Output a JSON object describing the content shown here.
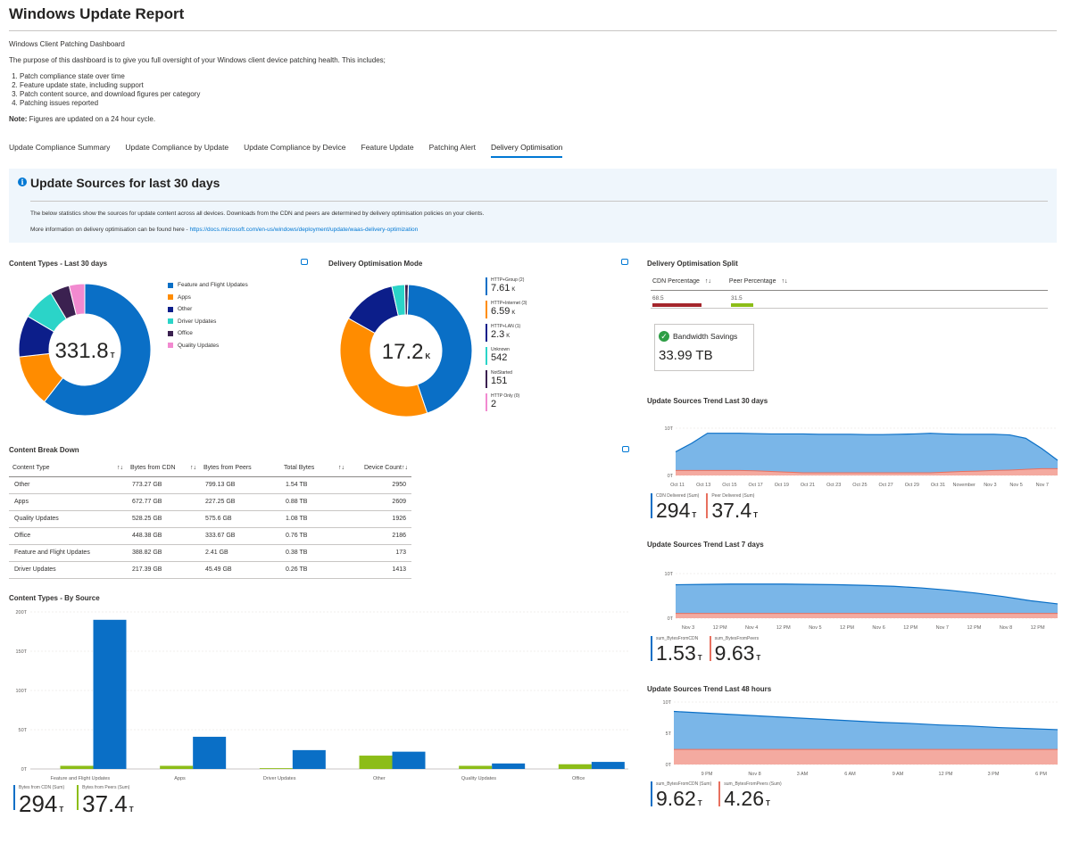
{
  "header": {
    "title": "Windows Update Report"
  },
  "intro": {
    "subtitle": "Windows Client Patching Dashboard",
    "purpose": "The purpose of this dashboard is to give you full oversight of your Windows client device patching health. This includes;",
    "list": [
      "Patch compliance state over time",
      "Feature update state, including support",
      "Patch content source, and download figures per category",
      "Patching issues reported"
    ],
    "note_label": "Note:",
    "note_text": " Figures are updated on a 24 hour cycle."
  },
  "tabs": [
    {
      "label": "Update Compliance Summary",
      "active": false
    },
    {
      "label": "Update Compliance by Update",
      "active": false
    },
    {
      "label": "Update Compliance by Device",
      "active": false
    },
    {
      "label": "Feature Update",
      "active": false
    },
    {
      "label": "Patching Alert",
      "active": false
    },
    {
      "label": "Delivery Optimisation",
      "active": true
    }
  ],
  "info": {
    "icon": "info-icon",
    "title": "Update Sources for last 30 days",
    "line1": "The below statistics show the sources for update content across all devices. Downloads from the CDN and peers are determined by delivery optimisation policies on your clients.",
    "line2_prefix": "More information on delivery optimisation can be found here - ",
    "link": "https://docs.microsoft.com/en-us/windows/deployment/update/waas-delivery-optimization"
  },
  "content_types": {
    "title": "Content Types - Last 30 days",
    "center_value": "331.8",
    "center_unit": "T",
    "legend": [
      {
        "label": "Feature and Flight Updates",
        "color": "#0a6fc6"
      },
      {
        "label": "Apps",
        "color": "#ff8c00"
      },
      {
        "label": "Other",
        "color": "#0c1e8a"
      },
      {
        "label": "Driver Updates",
        "color": "#2bd4c8"
      },
      {
        "label": "Office",
        "color": "#3b2150"
      },
      {
        "label": "Quality Updates",
        "color": "#f28ad0"
      }
    ]
  },
  "do_mode": {
    "title": "Delivery Optimisation Mode",
    "center_value": "17.2",
    "center_unit": "K",
    "legend": [
      {
        "label": "HTTP+Group (2)",
        "value": "7.61",
        "unit": "K",
        "color": "#0a6fc6"
      },
      {
        "label": "HTTP+Internet (3)",
        "value": "6.59",
        "unit": "K",
        "color": "#ff8c00"
      },
      {
        "label": "HTTP+LAN (1)",
        "value": "2.3",
        "unit": "K",
        "color": "#0c1e8a"
      },
      {
        "label": "Unknown",
        "value": "542",
        "unit": "",
        "color": "#2bd4c8"
      },
      {
        "label": "NotStarted",
        "value": "151",
        "unit": "",
        "color": "#3b2150"
      },
      {
        "label": "HTTP Only (0)",
        "value": "2",
        "unit": "",
        "color": "#f28ad0"
      }
    ]
  },
  "split": {
    "title": "Delivery Optimisation Split",
    "col1": "CDN Percentage",
    "col2": "Peer Percentage",
    "cdn": "68.5",
    "peer": "31.5",
    "cdn_color": "#a4262c",
    "peer_color": "#8cbd18",
    "savings_label": "Bandwidth Savings",
    "savings_value": "33.99 TB"
  },
  "breakdown": {
    "title": "Content Break Down",
    "columns": [
      "Content Type",
      "Bytes from CDN",
      "Bytes from Peers",
      "Total Bytes",
      "Device Count"
    ],
    "rows": [
      [
        "Other",
        "773.27 GB",
        "799.13 GB",
        "1.54 TB",
        "2950"
      ],
      [
        "Apps",
        "672.77 GB",
        "227.25 GB",
        "0.88 TB",
        "2609"
      ],
      [
        "Quality Updates",
        "528.25 GB",
        "575.6 GB",
        "1.08 TB",
        "1926"
      ],
      [
        "Office",
        "448.38 GB",
        "333.67 GB",
        "0.76 TB",
        "2186"
      ],
      [
        "Feature and Flight Updates",
        "388.82 GB",
        "2.41 GB",
        "0.38 TB",
        "173"
      ],
      [
        "Driver Updates",
        "217.39 GB",
        "45.49 GB",
        "0.26 TB",
        "1413"
      ]
    ]
  },
  "by_source": {
    "title": "Content Types - By Source",
    "kpi1_label": "Bytes from CDN (Sum)",
    "kpi1_value": "294",
    "kpi1_unit": "T",
    "kpi1_color": "#0a6fc6",
    "kpi2_label": "Bytes from Peers (Sum)",
    "kpi2_value": "37.4",
    "kpi2_unit": "T",
    "kpi2_color": "#8cbd18"
  },
  "trend30": {
    "title": "Update Sources Trend Last 30 days",
    "y_ticks": [
      "10T",
      "0T"
    ],
    "x_ticks": [
      "Oct 11",
      "Oct 13",
      "Oct 15",
      "Oct 17",
      "Oct 19",
      "Oct 21",
      "Oct 23",
      "Oct 25",
      "Oct 27",
      "Oct 29",
      "Oct 31",
      "November",
      "Nov 3",
      "Nov 5",
      "Nov 7"
    ],
    "kpi1_label": "CDN Delivered (Sum)",
    "kpi1_value": "294",
    "kpi1_unit": "T",
    "kpi2_label": "Peer Delivered (Sum)",
    "kpi2_value": "37.4",
    "kpi2_unit": "T"
  },
  "trend7": {
    "title": "Update Sources Trend Last 7 days",
    "y_ticks": [
      "10T",
      "0T"
    ],
    "x_ticks": [
      "Nov 3",
      "12 PM",
      "Nov 4",
      "12 PM",
      "Nov 5",
      "12 PM",
      "Nov 6",
      "12 PM",
      "Nov 7",
      "12 PM",
      "Nov 8",
      "12 PM"
    ],
    "kpi1_label": "sum_BytesFromCDN",
    "kpi1_value": "1.53",
    "kpi1_unit": "T",
    "kpi2_label": "sum_BytesFromPeers",
    "kpi2_value": "9.63",
    "kpi2_unit": "T"
  },
  "trend48": {
    "title": "Update Sources Trend Last 48 hours",
    "y_ticks": [
      "10T",
      "5T",
      "0T"
    ],
    "x_ticks": [
      "9 PM",
      "Nov 8",
      "3 AM",
      "6 AM",
      "9 AM",
      "12 PM",
      "3 PM",
      "6 PM"
    ],
    "kpi1_label": "sum_BytesFromCDN (Sum)",
    "kpi1_value": "9.62",
    "kpi1_unit": "T",
    "kpi2_label": "sum_BytesFromPeers (Sum)",
    "kpi2_value": "4.26",
    "kpi2_unit": "T"
  },
  "colors": {
    "cdn": "#0a6fc6",
    "peer": "#e8705f",
    "cdn_fill": "#7ab6e8",
    "peer_fill": "#f4aaa0"
  },
  "chart_data": [
    {
      "type": "pie",
      "categories": [
        "Feature and Flight Updates",
        "Apps",
        "Other",
        "Driver Updates",
        "Office",
        "Quality Updates"
      ],
      "values": [
        190,
        40,
        32,
        25,
        15,
        12
      ]
    },
    {
      "type": "pie",
      "categories": [
        "HTTP+Group (2)",
        "HTTP+Internet (3)",
        "HTTP+LAN (1)",
        "Unknown",
        "NotStarted",
        "HTTP Only (0)"
      ],
      "values": [
        7610,
        6590,
        2300,
        542,
        151,
        2
      ]
    },
    {
      "type": "bar",
      "categories": [
        "Feature and Flight Updates",
        "Apps",
        "Driver Updates",
        "Other",
        "Quality Updates",
        "Office"
      ],
      "series": [
        {
          "name": "Bytes from Peers (Sum)",
          "values": [
            4,
            4,
            1,
            17,
            4,
            6
          ]
        },
        {
          "name": "Bytes from CDN (Sum)",
          "values": [
            190,
            41,
            24,
            22,
            7,
            9
          ]
        }
      ],
      "y_ticks": [
        "0T",
        "50T",
        "100T",
        "150T",
        "200T"
      ],
      "ylim": [
        0,
        200
      ]
    },
    {
      "type": "area",
      "series": [
        {
          "name": "CDN Delivered (Sum)",
          "values": [
            7,
            9.5,
            12.5,
            12.5,
            12.5,
            12.4,
            12.3,
            12.3,
            12.3,
            12.2,
            12.2,
            12.2,
            12.1,
            12.1,
            12.2,
            12.3,
            12.5,
            12.3,
            12.2,
            12.2,
            12.2,
            12,
            11,
            8,
            4.5
          ]
        },
        {
          "name": "Peer Delivered (Sum)",
          "values": [
            1.5,
            1.5,
            1.5,
            1.5,
            1.5,
            1.4,
            1.2,
            1.0,
            0.8,
            0.8,
            0.8,
            0.8,
            0.8,
            0.8,
            0.8,
            0.8,
            0.8,
            1.0,
            1.2,
            1.3,
            1.5,
            1.6,
            1.8,
            2,
            2
          ]
        }
      ],
      "ylim": [
        0,
        14
      ]
    },
    {
      "type": "area",
      "series": [
        {
          "name": "sum_BytesFromCDN",
          "values": [
            10.5,
            10.6,
            10.7,
            10.7,
            10.7,
            10.6,
            10.5,
            10.3,
            10.0,
            9.5,
            8.8,
            7.9,
            6.8,
            5.5,
            4.5
          ]
        },
        {
          "name": "sum_BytesFromPeers",
          "values": [
            1.5,
            1.5,
            1.5,
            1.5,
            1.5,
            1.5,
            1.5,
            1.5,
            1.5,
            1.5,
            1.5,
            1.5,
            1.5,
            1.5,
            1.5
          ]
        }
      ],
      "ylim": [
        0,
        14
      ]
    },
    {
      "type": "area",
      "series": [
        {
          "name": "sum_BytesFromCDN (Sum)",
          "values": [
            10.2,
            9.9,
            9.6,
            9.3,
            9.0,
            8.7,
            8.4,
            8.1,
            7.9,
            7.6,
            7.4,
            7.1,
            6.9,
            6.7
          ]
        },
        {
          "name": "sum_BytesFromPeers (Sum)",
          "values": [
            2.9,
            2.9,
            2.9,
            2.9,
            2.9,
            2.9,
            2.9,
            2.9,
            2.9,
            2.9,
            2.9,
            2.9,
            2.9,
            2.9
          ]
        }
      ],
      "ylim": [
        0,
        12
      ]
    }
  ]
}
